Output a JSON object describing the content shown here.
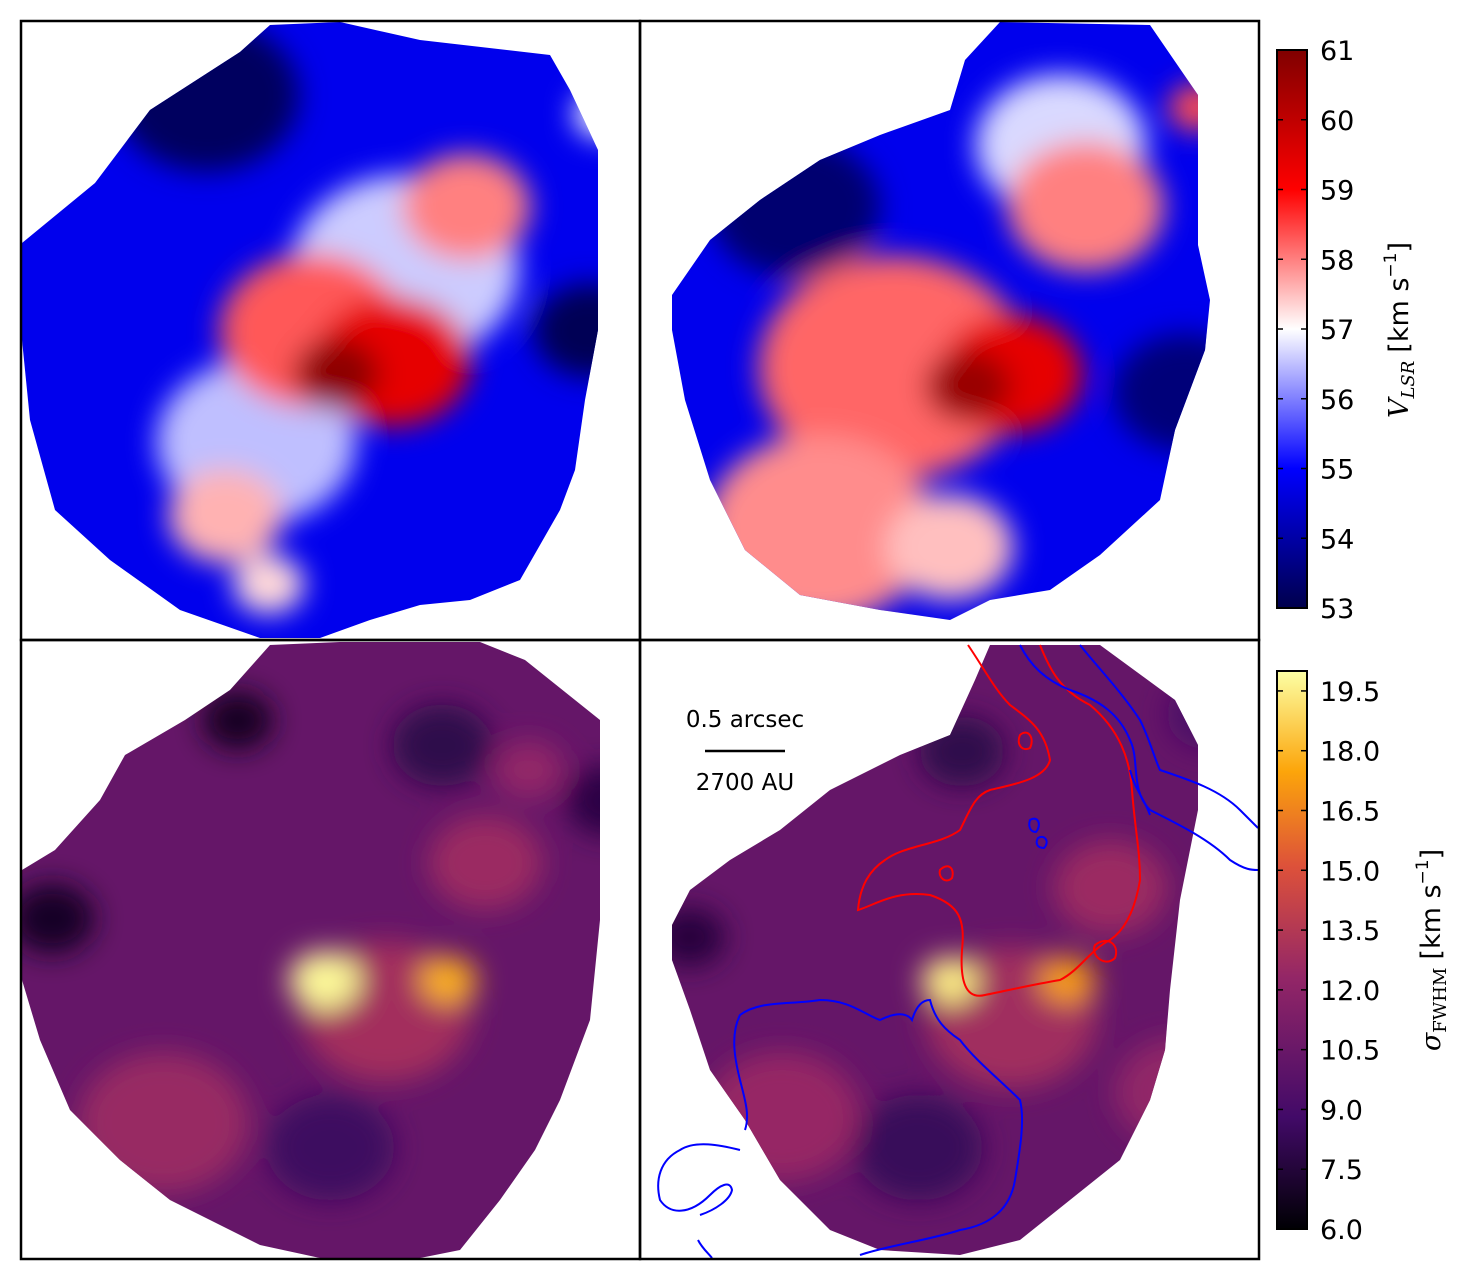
{
  "chart_data": [
    {
      "type": "heatmap",
      "panel": "top-left",
      "colormap": "seismic",
      "colorbar_ref": "velocity",
      "blobs": [
        {
          "value": 60.8,
          "cx": 0.51,
          "cy": 0.57,
          "r": 0.06
        },
        {
          "value": 59.4,
          "cx": 0.6,
          "cy": 0.55,
          "r": 0.11
        },
        {
          "value": 58.3,
          "cx": 0.47,
          "cy": 0.5,
          "r": 0.13
        },
        {
          "value": 58.0,
          "cx": 0.72,
          "cy": 0.3,
          "r": 0.09
        },
        {
          "value": 57.6,
          "cx": 0.33,
          "cy": 0.8,
          "r": 0.08
        },
        {
          "value": 57.3,
          "cx": 0.4,
          "cy": 0.91,
          "r": 0.05
        },
        {
          "value": 56.6,
          "cx": 0.62,
          "cy": 0.4,
          "r": 0.16
        },
        {
          "value": 56.5,
          "cx": 0.38,
          "cy": 0.68,
          "r": 0.14
        },
        {
          "value": 57.0,
          "cx": 0.94,
          "cy": 0.15,
          "r": 0.04
        },
        {
          "value": 53.2,
          "cx": 0.3,
          "cy": 0.12,
          "r": 0.13
        },
        {
          "value": 53.1,
          "cx": 0.92,
          "cy": 0.5,
          "r": 0.08
        }
      ],
      "background_value": 54.8
    },
    {
      "type": "heatmap",
      "panel": "top-right",
      "colormap": "seismic",
      "colorbar_ref": "velocity",
      "blobs": [
        {
          "value": 60.6,
          "cx": 0.53,
          "cy": 0.59,
          "r": 0.06
        },
        {
          "value": 59.4,
          "cx": 0.6,
          "cy": 0.57,
          "r": 0.1
        },
        {
          "value": 58.2,
          "cx": 0.41,
          "cy": 0.56,
          "r": 0.19
        },
        {
          "value": 58.0,
          "cx": 0.72,
          "cy": 0.3,
          "r": 0.11
        },
        {
          "value": 57.9,
          "cx": 0.29,
          "cy": 0.82,
          "r": 0.16
        },
        {
          "value": 57.5,
          "cx": 0.5,
          "cy": 0.85,
          "r": 0.09
        },
        {
          "value": 56.7,
          "cx": 0.68,
          "cy": 0.2,
          "r": 0.12
        },
        {
          "value": 58.4,
          "cx": 0.9,
          "cy": 0.14,
          "r": 0.04
        },
        {
          "value": 53.4,
          "cx": 0.25,
          "cy": 0.3,
          "r": 0.12
        },
        {
          "value": 53.5,
          "cx": 0.88,
          "cy": 0.6,
          "r": 0.1
        }
      ],
      "background_value": 54.8
    },
    {
      "type": "heatmap",
      "panel": "bottom-left",
      "colormap": "inferno",
      "colorbar_ref": "dispersion",
      "blobs": [
        {
          "value": 19.8,
          "cx": 0.49,
          "cy": 0.55,
          "r": 0.05
        },
        {
          "value": 17.8,
          "cx": 0.69,
          "cy": 0.55,
          "r": 0.04
        },
        {
          "value": 12.9,
          "cx": 0.59,
          "cy": 0.6,
          "r": 0.12
        },
        {
          "value": 12.6,
          "cx": 0.75,
          "cy": 0.36,
          "r": 0.08
        },
        {
          "value": 12.5,
          "cx": 0.23,
          "cy": 0.78,
          "r": 0.12
        },
        {
          "value": 12.3,
          "cx": 0.82,
          "cy": 0.21,
          "r": 0.05
        },
        {
          "value": 6.8,
          "cx": 0.35,
          "cy": 0.13,
          "r": 0.05
        },
        {
          "value": 7.0,
          "cx": 0.05,
          "cy": 0.45,
          "r": 0.06
        },
        {
          "value": 8.0,
          "cx": 0.68,
          "cy": 0.17,
          "r": 0.07
        },
        {
          "value": 8.6,
          "cx": 0.5,
          "cy": 0.82,
          "r": 0.09
        },
        {
          "value": 7.8,
          "cx": 0.95,
          "cy": 0.26,
          "r": 0.06
        }
      ],
      "background_value": 10.3
    },
    {
      "type": "heatmap",
      "panel": "bottom-right",
      "colormap": "inferno",
      "colorbar_ref": "dispersion",
      "blobs": [
        {
          "value": 19.5,
          "cx": 0.5,
          "cy": 0.55,
          "r": 0.04
        },
        {
          "value": 17.2,
          "cx": 0.69,
          "cy": 0.55,
          "r": 0.04
        },
        {
          "value": 12.8,
          "cx": 0.6,
          "cy": 0.61,
          "r": 0.12
        },
        {
          "value": 12.6,
          "cx": 0.76,
          "cy": 0.4,
          "r": 0.08
        },
        {
          "value": 12.4,
          "cx": 0.23,
          "cy": 0.77,
          "r": 0.11
        },
        {
          "value": 12.2,
          "cx": 0.87,
          "cy": 0.73,
          "r": 0.09
        },
        {
          "value": 7.6,
          "cx": 0.08,
          "cy": 0.48,
          "r": 0.05
        },
        {
          "value": 8.0,
          "cx": 0.52,
          "cy": 0.18,
          "r": 0.06
        },
        {
          "value": 8.4,
          "cx": 0.45,
          "cy": 0.82,
          "r": 0.09
        },
        {
          "value": 9.2,
          "cx": 0.92,
          "cy": 0.12,
          "r": 0.06
        }
      ],
      "background_value": 10.3,
      "contours": [
        {
          "color": "#ff0000",
          "name": "red-contour"
        },
        {
          "color": "#0000ff",
          "name": "blue-contour"
        }
      ],
      "scale_bar": {
        "top_text": "0.5 arcsec",
        "bottom_text": "2700 AU"
      }
    }
  ],
  "colorbars": {
    "velocity": {
      "label_symbol": "V",
      "label_subscript": "LSR",
      "label_units": "[km s",
      "label_exponent": "−1",
      "label_close": "]",
      "min": 53,
      "max": 61,
      "ticks": [
        "53",
        "54",
        "55",
        "56",
        "57",
        "58",
        "59",
        "60",
        "61"
      ],
      "tick_values": [
        53,
        54,
        55,
        56,
        57,
        58,
        59,
        60,
        61
      ],
      "colormap": "seismic"
    },
    "dispersion": {
      "label_symbol": "σ",
      "label_subscript": "FWHM",
      "label_units": "[km s",
      "label_exponent": "−1",
      "label_close": "]",
      "min": 6.0,
      "max": 20.0,
      "ticks": [
        "6.0",
        "7.5",
        "9.0",
        "10.5",
        "12.0",
        "13.5",
        "15.0",
        "16.5",
        "18.0",
        "19.5"
      ],
      "tick_values": [
        6.0,
        7.5,
        9.0,
        10.5,
        12.0,
        13.5,
        15.0,
        16.5,
        18.0,
        19.5
      ],
      "colormap": "inferno"
    }
  },
  "colors": {
    "seismic": [
      "#00004c",
      "#0000ff",
      "#ffffff",
      "#ff0000",
      "#800000"
    ],
    "inferno": [
      "#000004",
      "#420a68",
      "#932667",
      "#dd513a",
      "#fca50a",
      "#fcffa4"
    ]
  }
}
